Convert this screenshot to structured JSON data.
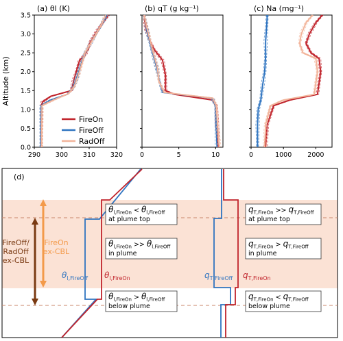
{
  "colors": {
    "fire_on": "#c0232b",
    "fire_off": "#2f74c0",
    "rad_off": "#f2b49a",
    "band": "#fbe2d5",
    "dashed_line": "#c8866a",
    "arrow_fireon": "#f39a4a",
    "arrow_fireoff": "#7a3a12"
  },
  "legend": [
    {
      "name": "FireOn",
      "color_key": "fire_on"
    },
    {
      "name": "FireOff",
      "color_key": "fire_off"
    },
    {
      "name": "RadOff",
      "color_key": "rad_off"
    }
  ],
  "ylabel": "Altitude (km)",
  "yticks": [
    "0.0",
    "0.5",
    "1.0",
    "1.5",
    "2.0",
    "2.5",
    "3.0",
    "3.5"
  ],
  "chart_data": [
    {
      "type": "line",
      "title": "(a) θl (K)",
      "xlim": [
        290,
        320
      ],
      "ylim": [
        0,
        3.5
      ],
      "xticks": [
        290,
        300,
        310,
        320
      ],
      "series": [
        {
          "name": "FireOn",
          "color_key": "fire_on",
          "x": [
            292.5,
            292.6,
            293,
            296,
            303.5,
            304.5,
            305.5,
            306.5,
            308.5,
            309.6,
            310.5,
            313,
            315,
            317
          ],
          "y": [
            0,
            1.1,
            1.2,
            1.35,
            1.5,
            1.8,
            2.05,
            2.3,
            2.45,
            2.6,
            2.8,
            3.1,
            3.3,
            3.5
          ]
        },
        {
          "name": "FireOff",
          "color_key": "fire_off",
          "x": [
            292.4,
            292.5,
            296,
            302,
            304,
            305.5,
            307,
            308.5,
            310.5,
            312.5,
            314.5,
            316.5
          ],
          "y": [
            0,
            1.1,
            1.25,
            1.4,
            1.55,
            1.85,
            2.2,
            2.5,
            2.75,
            3.0,
            3.25,
            3.5
          ]
        },
        {
          "name": "RadOff",
          "color_key": "rad_off",
          "x": [
            292.7,
            292.8,
            297,
            302.5,
            304.5,
            306,
            307.5,
            308.5,
            310.5,
            312.5,
            314.5,
            316
          ],
          "y": [
            0,
            1.1,
            1.25,
            1.42,
            1.6,
            1.9,
            2.25,
            2.5,
            2.75,
            3.0,
            3.25,
            3.5
          ]
        }
      ]
    },
    {
      "type": "line",
      "title": "(b) qT (g kg⁻¹)",
      "xlim": [
        0,
        11
      ],
      "ylim": [
        0,
        3.5
      ],
      "xticks": [
        0,
        5,
        10
      ],
      "series": [
        {
          "name": "FireOn",
          "color_key": "fire_on",
          "x": [
            0.3,
            0.4,
            0.6,
            1.0,
            1.6,
            2.8,
            3.2,
            3.2,
            4.4,
            9.6,
            10.1,
            10.2,
            10.4
          ],
          "y": [
            3.5,
            3.3,
            3.1,
            2.85,
            2.6,
            2.3,
            1.9,
            1.5,
            1.4,
            1.25,
            1.1,
            0.6,
            0
          ]
        },
        {
          "name": "FireOff",
          "color_key": "fire_off",
          "x": [
            0.3,
            0.5,
            0.7,
            1.1,
            1.5,
            2.0,
            2.3,
            2.8,
            9.5,
            10.0,
            10.1,
            10.2
          ],
          "y": [
            3.5,
            3.3,
            3.05,
            2.75,
            2.45,
            2.1,
            1.8,
            1.45,
            1.3,
            1.1,
            0.5,
            0
          ]
        },
        {
          "name": "RadOff",
          "color_key": "rad_off",
          "x": [
            0.3,
            0.5,
            0.8,
            1.2,
            1.6,
            2.1,
            2.3,
            3.0,
            9.6,
            10.1,
            10.3,
            10.5
          ],
          "y": [
            3.5,
            3.3,
            3.05,
            2.75,
            2.45,
            2.1,
            1.75,
            1.45,
            1.3,
            1.1,
            0.5,
            0
          ]
        }
      ]
    },
    {
      "type": "line",
      "title": "(c) Na (mg⁻¹)",
      "xlim": [
        0,
        2500
      ],
      "ylim": [
        0,
        3.5
      ],
      "xticks": [
        0,
        1000,
        2000
      ],
      "series": [
        {
          "name": "FireOn",
          "color_key": "fire_on",
          "x": [
            2200,
            2000,
            1800,
            1700,
            1850,
            2100,
            2150,
            2050,
            1200,
            700,
            500,
            450
          ],
          "y": [
            3.5,
            3.3,
            3.0,
            2.75,
            2.5,
            2.35,
            2.0,
            1.4,
            1.25,
            1.1,
            0.6,
            0
          ]
        },
        {
          "name": "FireOff",
          "color_key": "fire_off",
          "x": [
            500,
            480,
            450,
            450,
            420,
            350,
            300,
            220,
            200,
            200
          ],
          "y": [
            3.5,
            3.2,
            2.8,
            2.4,
            2.0,
            1.6,
            1.25,
            1.0,
            0.6,
            0
          ]
        },
        {
          "name": "RadOff",
          "color_key": "rad_off",
          "x": [
            1900,
            1700,
            1550,
            1500,
            1600,
            2000,
            2050,
            1950,
            1000,
            600,
            450,
            420
          ],
          "y": [
            3.5,
            3.3,
            3.0,
            2.75,
            2.5,
            2.35,
            2.0,
            1.4,
            1.25,
            1.1,
            0.6,
            0
          ]
        }
      ]
    }
  ],
  "diagram": {
    "title": "(d)",
    "left_arrow_label": [
      "FireOff/",
      "RadOff",
      "ex-CBL"
    ],
    "right_arrow_label": [
      "FireOn",
      "ex-CBL"
    ],
    "theta_fireoff": {
      "main": "θ",
      "sub": "l,FireOff"
    },
    "theta_fireon": {
      "main": "θ",
      "sub": "l,FireOn"
    },
    "q_fireoff": {
      "main": "q",
      "sub": "T,FireOff"
    },
    "q_fireon": {
      "main": "q",
      "sub": "T,FireOn"
    },
    "theta_boxes": [
      {
        "lhs": "θ",
        "lhs_sub": "l,FireOn",
        "op": " < ",
        "rhs": "θ",
        "rhs_sub": "l,FireOff",
        "where": "at plume top"
      },
      {
        "lhs": "θ",
        "lhs_sub": "l,FireOn",
        "op": " >> ",
        "rhs": "θ",
        "rhs_sub": "l,FireOff",
        "where": "in plume"
      },
      {
        "lhs": "θ",
        "lhs_sub": "l,FireOn",
        "op": " > ",
        "rhs": "θ",
        "rhs_sub": "l,FireOff",
        "where": "below plume"
      }
    ],
    "q_boxes": [
      {
        "lhs": "q",
        "lhs_sub": "T,FireOn",
        "op": " >> ",
        "rhs": "q",
        "rhs_sub": "T,FireOff",
        "where": "at plume top"
      },
      {
        "lhs": "q",
        "lhs_sub": "T,FireOn",
        "op": " > ",
        "rhs": "q",
        "rhs_sub": "T,FireOff",
        "where": "in plume"
      },
      {
        "lhs": "q",
        "lhs_sub": "T,FireOn",
        "op": " < ",
        "rhs": "q",
        "rhs_sub": "T,FireOff",
        "where": "below plume"
      }
    ]
  }
}
